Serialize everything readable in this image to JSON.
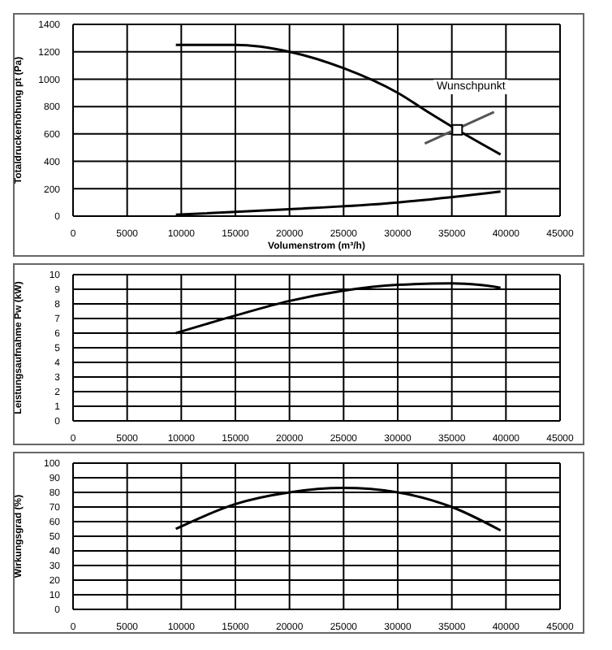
{
  "chart_data": [
    {
      "type": "line",
      "xlabel": "Volumenstrom (m³/h)",
      "ylabel": "Totaldruckerhöhung pt (Pa)",
      "xlim": [
        0,
        45000
      ],
      "xticks": [
        0,
        5000,
        10000,
        15000,
        20000,
        25000,
        30000,
        35000,
        40000,
        45000
      ],
      "ylim": [
        0,
        1400
      ],
      "yticks": [
        0,
        200,
        400,
        600,
        800,
        1000,
        1200,
        1400
      ],
      "grid": true,
      "annotations": [
        "Wunschpunkt"
      ],
      "series": [
        {
          "type": "line",
          "color": "#000000",
          "x": [
            9500,
            15000,
            20000,
            25000,
            30000,
            33000,
            35500,
            39500
          ],
          "values": [
            1250,
            1250,
            1200,
            1080,
            900,
            750,
            630,
            450
          ]
        },
        {
          "type": "line",
          "color": "#000000",
          "x": [
            9500,
            20000,
            30000,
            39500
          ],
          "values": [
            10,
            50,
            100,
            180
          ]
        },
        {
          "type": "line",
          "color": "#555555",
          "x": [
            32500,
            38900
          ],
          "values": [
            530,
            760
          ]
        },
        {
          "type": "scatter",
          "color": "#000000",
          "marker": "square",
          "x": [
            35500
          ],
          "values": [
            630
          ]
        }
      ]
    },
    {
      "type": "line",
      "ylabel": "Leistungsaufnahme Pw (kW)",
      "xlim": [
        0,
        45000
      ],
      "xticks": [
        0,
        5000,
        10000,
        15000,
        20000,
        25000,
        30000,
        35000,
        40000,
        45000
      ],
      "ylim": [
        0,
        10
      ],
      "yticks": [
        0,
        1,
        2,
        3,
        4,
        5,
        6,
        7,
        8,
        9,
        10
      ],
      "grid": true,
      "series": [
        {
          "type": "line",
          "color": "#000000",
          "x": [
            9500,
            15000,
            20000,
            25000,
            30000,
            35000,
            37500,
            39500
          ],
          "values": [
            6.0,
            7.2,
            8.2,
            8.9,
            9.3,
            9.4,
            9.3,
            9.1
          ]
        }
      ]
    },
    {
      "type": "line",
      "ylabel": "Wirkungsgrad (%)",
      "xlim": [
        0,
        45000
      ],
      "xticks": [
        0,
        5000,
        10000,
        15000,
        20000,
        25000,
        30000,
        35000,
        40000,
        45000
      ],
      "ylim": [
        0,
        100
      ],
      "yticks": [
        0,
        10,
        20,
        30,
        40,
        50,
        60,
        70,
        80,
        90,
        100
      ],
      "grid": true,
      "series": [
        {
          "type": "line",
          "color": "#000000",
          "x": [
            9500,
            15000,
            20000,
            25000,
            30000,
            35000,
            39500
          ],
          "values": [
            55,
            72,
            80,
            83,
            80,
            70,
            54
          ]
        }
      ]
    }
  ]
}
